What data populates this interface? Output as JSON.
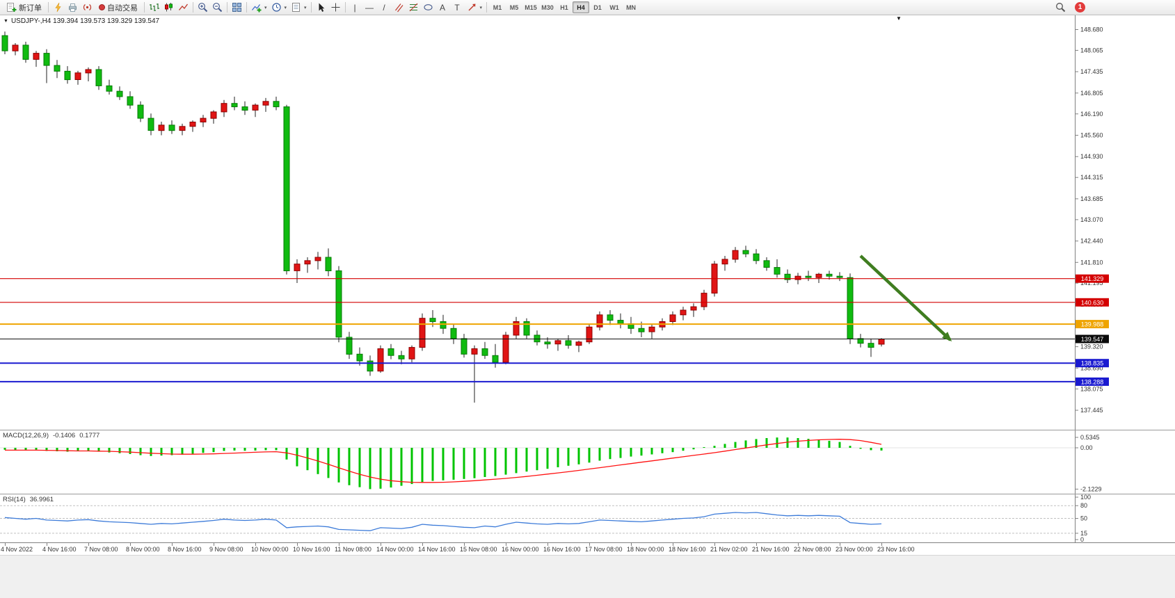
{
  "toolbar": {
    "new_order_label": "新订单",
    "autotrading_label": "自动交易",
    "timeframes": [
      "M1",
      "M5",
      "M15",
      "M30",
      "H1",
      "H4",
      "D1",
      "W1",
      "MN"
    ],
    "active_timeframe": "H4",
    "notification_count": "1"
  },
  "icons": {
    "caret": "▾",
    "collapse": "▼",
    "shift_marker": "▼",
    "vline": "|",
    "hline": "—",
    "trendline": "/",
    "text_tool": "A",
    "label_tool": "T"
  },
  "chart": {
    "title": "USDJPY-,H4 139.394 139.573 139.329 139.547",
    "symbol": "USDJPY-",
    "period": "H4",
    "open": "139.394",
    "high": "139.573",
    "low": "139.329",
    "close": "139.547"
  },
  "chart_data": {
    "type": "candlestick",
    "symbol": "USDJPY-",
    "timeframe": "H4",
    "ohlc_current": {
      "open": 139.394,
      "high": 139.573,
      "low": 139.329,
      "close": 139.547
    },
    "colors": {
      "up": "#e01515",
      "up_border": "#8e0000",
      "down": "#10bb10",
      "down_border": "#067a06",
      "wick": "#222222",
      "macd_histogram": "#00c400",
      "macd_signal": "#ff1111",
      "rsi_line": "#3c7bd9",
      "arrow": "#3f7d20"
    },
    "price_axis": {
      "max": 149.1,
      "min": 136.87,
      "ticks": [
        "148.680",
        "148.065",
        "147.435",
        "146.805",
        "146.190",
        "145.560",
        "144.930",
        "144.315",
        "143.685",
        "143.070",
        "142.440",
        "141.810",
        "141.195",
        "140.565",
        "139.935",
        "139.320",
        "138.690",
        "138.075",
        "137.445"
      ]
    },
    "hlines": [
      {
        "price": 141.329,
        "label": "141.329",
        "color": "#d40000",
        "width": 1.2
      },
      {
        "price": 140.63,
        "label": "140.630",
        "color": "#d40000",
        "width": 1.2
      },
      {
        "price": 139.988,
        "label": "139.988",
        "color": "#efa400",
        "width": 2
      },
      {
        "price": 138.835,
        "label": "138.835",
        "color": "#1a1ad0",
        "width": 2
      },
      {
        "price": 138.288,
        "label": "138.288",
        "color": "#1a1ad0",
        "width": 2
      }
    ],
    "bid_line": {
      "price": 139.547,
      "label": "139.547",
      "color": "#111111"
    },
    "trend_arrow": {
      "from_bar": 82,
      "from_price": 142.0,
      "to_bar": 90.6,
      "to_price": 139.52
    },
    "candles": [
      [
        148.5,
        148.62,
        147.95,
        148.05
      ],
      [
        148.05,
        148.28,
        147.92,
        148.22
      ],
      [
        148.22,
        148.32,
        147.7,
        147.8
      ],
      [
        147.8,
        148.05,
        147.58,
        147.98
      ],
      [
        147.98,
        148.1,
        147.1,
        147.62
      ],
      [
        147.62,
        147.78,
        147.25,
        147.45
      ],
      [
        147.45,
        147.6,
        147.08,
        147.2
      ],
      [
        147.2,
        147.46,
        147.05,
        147.4
      ],
      [
        147.4,
        147.56,
        147.15,
        147.5
      ],
      [
        147.5,
        147.6,
        146.9,
        147.02
      ],
      [
        147.02,
        147.2,
        146.76,
        146.86
      ],
      [
        146.86,
        147.0,
        146.6,
        146.7
      ],
      [
        146.7,
        146.86,
        146.34,
        146.45
      ],
      [
        146.45,
        146.56,
        145.95,
        146.06
      ],
      [
        146.06,
        146.2,
        145.56,
        145.7
      ],
      [
        145.7,
        145.96,
        145.56,
        145.86
      ],
      [
        145.86,
        146.0,
        145.6,
        145.7
      ],
      [
        145.7,
        145.9,
        145.56,
        145.82
      ],
      [
        145.82,
        146.0,
        145.66,
        145.95
      ],
      [
        145.95,
        146.16,
        145.8,
        146.06
      ],
      [
        146.06,
        146.3,
        145.9,
        146.25
      ],
      [
        146.25,
        146.6,
        146.1,
        146.5
      ],
      [
        146.5,
        146.7,
        146.3,
        146.4
      ],
      [
        146.4,
        146.56,
        146.16,
        146.3
      ],
      [
        146.3,
        146.5,
        146.1,
        146.45
      ],
      [
        146.45,
        146.66,
        146.25,
        146.56
      ],
      [
        146.56,
        146.7,
        146.3,
        146.4
      ],
      [
        146.4,
        146.46,
        141.45,
        141.56
      ],
      [
        141.56,
        141.9,
        141.2,
        141.76
      ],
      [
        141.76,
        141.96,
        141.5,
        141.86
      ],
      [
        141.86,
        142.12,
        141.6,
        141.96
      ],
      [
        141.96,
        142.22,
        141.4,
        141.56
      ],
      [
        141.56,
        141.7,
        139.45,
        139.6
      ],
      [
        139.6,
        139.76,
        138.96,
        139.1
      ],
      [
        139.1,
        139.3,
        138.76,
        138.9
      ],
      [
        138.9,
        139.06,
        138.46,
        138.6
      ],
      [
        138.6,
        139.36,
        138.55,
        139.26
      ],
      [
        139.26,
        139.4,
        138.95,
        139.06
      ],
      [
        139.06,
        139.2,
        138.8,
        138.96
      ],
      [
        138.96,
        139.36,
        138.86,
        139.3
      ],
      [
        139.3,
        140.3,
        139.2,
        140.16
      ],
      [
        140.16,
        140.4,
        139.9,
        140.06
      ],
      [
        140.06,
        140.26,
        139.7,
        139.86
      ],
      [
        139.86,
        140.0,
        139.4,
        139.56
      ],
      [
        139.56,
        139.7,
        139.0,
        139.1
      ],
      [
        139.1,
        139.36,
        137.67,
        139.26
      ],
      [
        139.26,
        139.46,
        138.96,
        139.06
      ],
      [
        139.06,
        139.4,
        138.7,
        138.86
      ],
      [
        138.86,
        139.76,
        138.8,
        139.66
      ],
      [
        139.66,
        140.2,
        139.56,
        140.06
      ],
      [
        140.06,
        140.16,
        139.56,
        139.66
      ],
      [
        139.66,
        139.8,
        139.36,
        139.46
      ],
      [
        139.46,
        139.6,
        139.26,
        139.4
      ],
      [
        139.4,
        139.56,
        139.2,
        139.5
      ],
      [
        139.5,
        139.66,
        139.26,
        139.36
      ],
      [
        139.36,
        139.5,
        139.16,
        139.46
      ],
      [
        139.46,
        140.0,
        139.4,
        139.9
      ],
      [
        139.9,
        140.36,
        139.8,
        140.26
      ],
      [
        140.26,
        140.4,
        139.96,
        140.1
      ],
      [
        140.1,
        140.3,
        139.86,
        140.0
      ],
      [
        140.0,
        140.2,
        139.7,
        139.86
      ],
      [
        139.86,
        140.06,
        139.6,
        139.76
      ],
      [
        139.76,
        140.0,
        139.56,
        139.9
      ],
      [
        139.9,
        140.16,
        139.8,
        140.06
      ],
      [
        140.06,
        140.36,
        139.96,
        140.26
      ],
      [
        140.26,
        140.5,
        140.1,
        140.4
      ],
      [
        140.4,
        140.6,
        140.2,
        140.5
      ],
      [
        140.5,
        141.0,
        140.4,
        140.9
      ],
      [
        140.9,
        141.85,
        140.8,
        141.76
      ],
      [
        141.76,
        142.0,
        141.56,
        141.9
      ],
      [
        141.9,
        142.26,
        141.8,
        142.16
      ],
      [
        142.16,
        142.3,
        141.96,
        142.06
      ],
      [
        142.06,
        142.2,
        141.76,
        141.86
      ],
      [
        141.86,
        141.96,
        141.56,
        141.66
      ],
      [
        141.66,
        141.9,
        141.36,
        141.46
      ],
      [
        141.46,
        141.6,
        141.2,
        141.3
      ],
      [
        141.3,
        141.5,
        141.16,
        141.4
      ],
      [
        141.4,
        141.56,
        141.26,
        141.36
      ],
      [
        141.36,
        141.5,
        141.2,
        141.46
      ],
      [
        141.46,
        141.56,
        141.3,
        141.4
      ],
      [
        141.4,
        141.52,
        141.26,
        141.36
      ],
      [
        141.36,
        141.48,
        139.4,
        139.56
      ],
      [
        139.56,
        139.7,
        139.3,
        139.42
      ],
      [
        139.42,
        139.56,
        139.02,
        139.3
      ],
      [
        139.394,
        139.573,
        139.329,
        139.547
      ]
    ],
    "x_labels": [
      "4 Nov 2022",
      "4 Nov 16:00",
      "7 Nov 08:00",
      "8 Nov 00:00",
      "8 Nov 16:00",
      "9 Nov 08:00",
      "10 Nov 00:00",
      "10 Nov 16:00",
      "11 Nov 08:00",
      "14 Nov 00:00",
      "14 Nov 16:00",
      "15 Nov 08:00",
      "16 Nov 00:00",
      "16 Nov 16:00",
      "17 Nov 08:00",
      "18 Nov 00:00",
      "18 Nov 16:00",
      "21 Nov 02:00",
      "21 Nov 16:00",
      "22 Nov 08:00",
      "23 Nov 00:00",
      "23 Nov 16:00"
    ],
    "macd": {
      "label": "MACD(12,26,9)",
      "value_main": "-0.1406",
      "value_signal": "0.1777",
      "scale": {
        "max": 0.5345,
        "min": -2.1229,
        "max_label": "0.5345",
        "zero_label": "0.00",
        "min_label": "-2.1229"
      },
      "histogram": [
        -0.1,
        -0.14,
        -0.12,
        -0.1,
        -0.16,
        -0.18,
        -0.2,
        -0.18,
        -0.16,
        -0.2,
        -0.24,
        -0.28,
        -0.32,
        -0.38,
        -0.42,
        -0.4,
        -0.38,
        -0.35,
        -0.3,
        -0.26,
        -0.22,
        -0.16,
        -0.14,
        -0.15,
        -0.14,
        -0.12,
        -0.12,
        -0.6,
        -0.95,
        -1.15,
        -1.35,
        -1.55,
        -1.78,
        -1.92,
        -2.02,
        -2.12,
        -2.1,
        -2.04,
        -1.95,
        -1.86,
        -1.76,
        -1.7,
        -1.67,
        -1.64,
        -1.6,
        -1.56,
        -1.5,
        -1.45,
        -1.38,
        -1.3,
        -1.22,
        -1.15,
        -1.08,
        -1.0,
        -0.92,
        -0.85,
        -0.76,
        -0.66,
        -0.58,
        -0.52,
        -0.45,
        -0.4,
        -0.34,
        -0.28,
        -0.22,
        -0.15,
        -0.08,
        0.0,
        0.1,
        0.2,
        0.3,
        0.38,
        0.45,
        0.5,
        0.53,
        0.53,
        0.5,
        0.46,
        0.41,
        0.36,
        0.3,
        0.1,
        -0.05,
        -0.12,
        -0.14
      ],
      "signal": [
        -0.12,
        -0.12,
        -0.12,
        -0.12,
        -0.13,
        -0.14,
        -0.15,
        -0.16,
        -0.16,
        -0.17,
        -0.18,
        -0.2,
        -0.22,
        -0.25,
        -0.28,
        -0.3,
        -0.32,
        -0.33,
        -0.33,
        -0.32,
        -0.31,
        -0.29,
        -0.27,
        -0.25,
        -0.23,
        -0.21,
        -0.2,
        -0.26,
        -0.38,
        -0.52,
        -0.68,
        -0.85,
        -1.03,
        -1.2,
        -1.36,
        -1.5,
        -1.61,
        -1.69,
        -1.74,
        -1.77,
        -1.78,
        -1.78,
        -1.77,
        -1.75,
        -1.72,
        -1.69,
        -1.65,
        -1.61,
        -1.57,
        -1.52,
        -1.47,
        -1.41,
        -1.35,
        -1.29,
        -1.23,
        -1.16,
        -1.09,
        -1.02,
        -0.95,
        -0.88,
        -0.81,
        -0.74,
        -0.67,
        -0.6,
        -0.53,
        -0.46,
        -0.39,
        -0.32,
        -0.25,
        -0.17,
        -0.09,
        -0.01,
        0.07,
        0.15,
        0.22,
        0.29,
        0.34,
        0.38,
        0.41,
        0.43,
        0.44,
        0.42,
        0.37,
        0.28,
        0.18
      ]
    },
    "rsi": {
      "label": "RSI(14)",
      "value": "36.9961",
      "levels": [
        80,
        50,
        15
      ],
      "scale_ticks": [
        {
          "v": 100,
          "label": "100"
        },
        {
          "v": 80,
          "label": "80"
        },
        {
          "v": 50,
          "label": "50"
        },
        {
          "v": 15,
          "label": "15"
        },
        {
          "v": 0,
          "label": "0"
        }
      ],
      "values": [
        52,
        50,
        48,
        50,
        46,
        45,
        44,
        46,
        47,
        44,
        42,
        41,
        40,
        38,
        36,
        38,
        37,
        39,
        41,
        43,
        45,
        48,
        46,
        45,
        46,
        48,
        46,
        28,
        30,
        31,
        32,
        30,
        24,
        23,
        22,
        21,
        28,
        27,
        26,
        29,
        36,
        34,
        33,
        31,
        29,
        28,
        32,
        30,
        36,
        41,
        39,
        37,
        36,
        38,
        37,
        38,
        42,
        46,
        45,
        44,
        43,
        42,
        44,
        46,
        48,
        50,
        51,
        54,
        60,
        62,
        64,
        63,
        64,
        61,
        58,
        56,
        57,
        56,
        57,
        56,
        55,
        40,
        38,
        36,
        37
      ]
    }
  }
}
